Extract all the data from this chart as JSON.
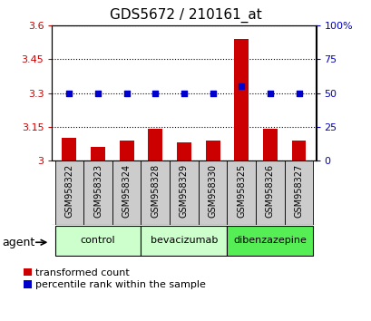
{
  "title": "GDS5672 / 210161_at",
  "samples": [
    "GSM958322",
    "GSM958323",
    "GSM958324",
    "GSM958328",
    "GSM958329",
    "GSM958330",
    "GSM958325",
    "GSM958326",
    "GSM958327"
  ],
  "red_values": [
    3.1,
    3.06,
    3.09,
    3.14,
    3.08,
    3.09,
    3.54,
    3.14,
    3.09
  ],
  "blue_values": [
    50,
    50,
    50,
    50,
    50,
    50,
    55,
    50,
    50
  ],
  "ylim_left": [
    3.0,
    3.6
  ],
  "ylim_right": [
    0,
    100
  ],
  "yticks_left": [
    3.0,
    3.15,
    3.3,
    3.45,
    3.6
  ],
  "yticks_right": [
    0,
    25,
    50,
    75,
    100
  ],
  "ytick_labels_left": [
    "3",
    "3.15",
    "3.3",
    "3.45",
    "3.6"
  ],
  "ytick_labels_right": [
    "0",
    "25",
    "50",
    "75",
    "100%"
  ],
  "bar_color": "#cc0000",
  "dot_color": "#0000cc",
  "bar_width": 0.5,
  "bg_color": "#ffffff",
  "sample_bg": "#cccccc",
  "agent_label": "agent",
  "legend_red": "transformed count",
  "legend_blue": "percentile rank within the sample",
  "group_data": [
    {
      "label": "control",
      "start": 0,
      "end": 2,
      "color": "#ccffcc"
    },
    {
      "label": "bevacizumab",
      "start": 3,
      "end": 5,
      "color": "#ccffcc"
    },
    {
      "label": "dibenzazepine",
      "start": 6,
      "end": 8,
      "color": "#55ee55"
    }
  ]
}
